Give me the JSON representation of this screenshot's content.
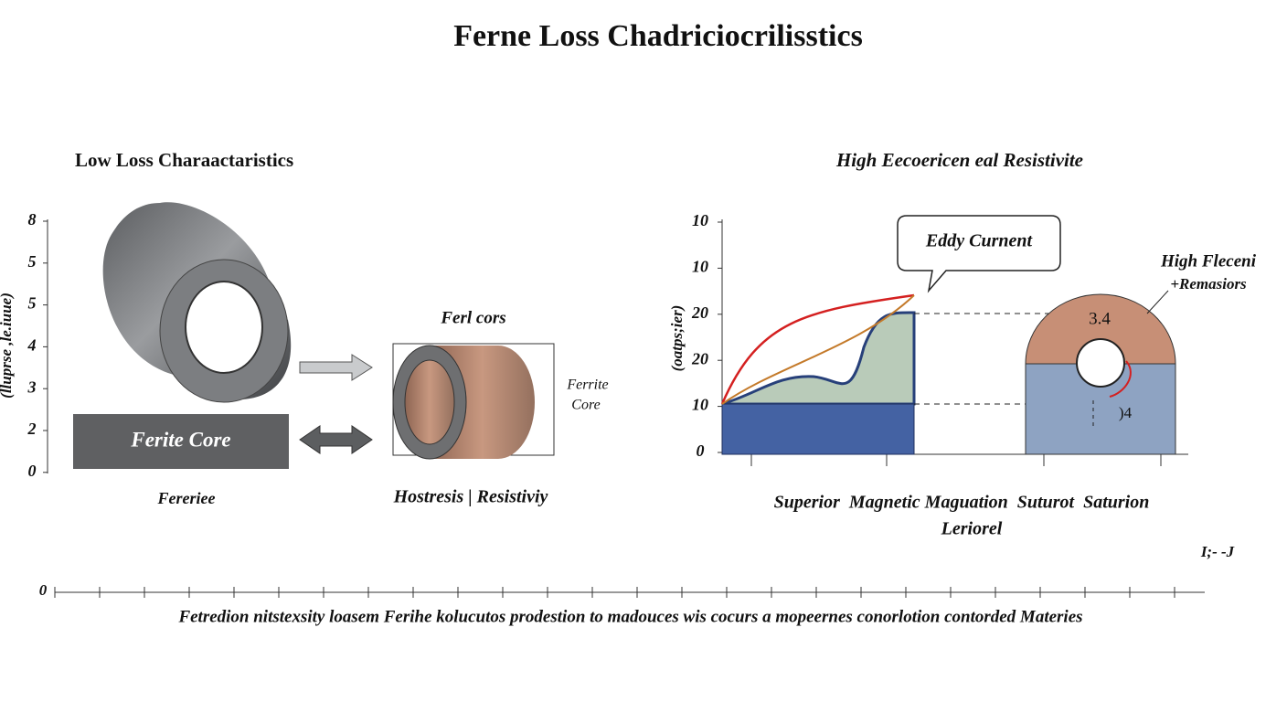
{
  "title": "Ferne Loss Chadriciocrilisstics",
  "left_panel": {
    "heading": "Low Loss Charaactaristics",
    "axis_label": "(lluprse ,le.iuue)",
    "ticks": [
      "8",
      "5",
      "5",
      "4",
      "3",
      "2",
      "0"
    ],
    "core_box_label": "Ferite Core",
    "core_caption": "Fereriee",
    "cylinder_label": "Ferl cors",
    "cylinder_side_label": [
      "Ferrite",
      "Core"
    ],
    "caption": "Hostresis | Resistiviy"
  },
  "right_panel": {
    "heading": "High Eecoericen eal Resistivite",
    "axis_label": "(oatps;ier)",
    "ticks": [
      "10",
      "10",
      "20",
      "20",
      "10",
      "0"
    ],
    "callout": "Eddy Curnent",
    "side_label": [
      "High Fleceni",
      "+Remasiors"
    ],
    "upper_value": "3.4",
    "lower_value": ")4",
    "caption": [
      "Superior  Magnetic Maguation  Suturot  Saturion",
      "Leriorel"
    ],
    "corner_mark": "I;- -J"
  },
  "bottom_axis": {
    "tick": "0"
  },
  "footer": "Fetredion nitstexsity loasem Ferihe kolucutos prodestion to madouces wis cocurs a mopeernes conorlotion contorded Materies"
}
